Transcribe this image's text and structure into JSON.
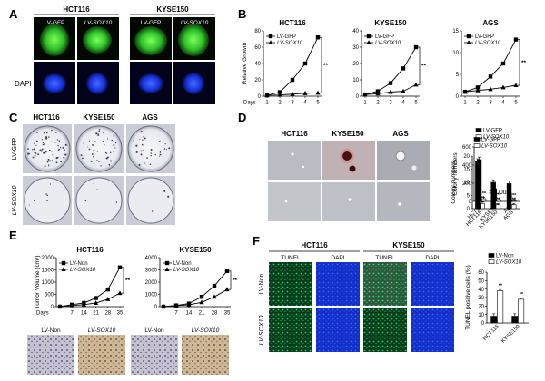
{
  "panels": {
    "A": {
      "letter": "A",
      "cells": [
        "HCT116",
        "KYSE150"
      ],
      "cols": [
        "LV-GFP",
        "LV-SOX10",
        "LV-GFP",
        "LV-SOX10"
      ],
      "row2": "DAPI"
    },
    "C": {
      "letter": "C",
      "cols": [
        "HCT116",
        "KYSE150",
        "AGS"
      ],
      "rows": [
        "LV-GFP",
        "LV-SOX10"
      ]
    },
    "D": {
      "letter": "D",
      "cols": [
        "HCT116",
        "KYSE150",
        "AGS"
      ],
      "note": ">100uM"
    },
    "E": {
      "letter": "E",
      "photo_labels": [
        "LV-Non",
        "LV-SOX10",
        "LV-Non",
        "LV-SOX10"
      ]
    },
    "F": {
      "letter": "F",
      "cells": [
        "HCT116",
        "KYSE150"
      ],
      "cols": [
        "TUNEL",
        "DAPI",
        "TUNEL",
        "DAPI"
      ],
      "rows": [
        "LV-Non",
        "LV-SOX10"
      ]
    }
  },
  "chart_data": [
    {
      "id": "B1",
      "type": "line",
      "title": "HCT116",
      "x": [
        1,
        2,
        3,
        4,
        5
      ],
      "xlabel": "Days",
      "ylabel": "Relative Growth",
      "ylim": [
        0,
        80
      ],
      "yticks": [
        0,
        20,
        40,
        60,
        80
      ],
      "legend": "top-left",
      "sig": "**",
      "series": [
        {
          "name": "LV-GFP",
          "values": [
            1,
            5,
            20,
            40,
            72
          ]
        },
        {
          "name": "LV-SOX10",
          "values": [
            1,
            1.5,
            2.5,
            3.5,
            4
          ]
        }
      ]
    },
    {
      "id": "B2",
      "type": "line",
      "title": "KYSE150",
      "x": [
        1,
        2,
        3,
        4,
        5
      ],
      "xlabel": "",
      "ylabel": "",
      "ylim": [
        0,
        40
      ],
      "yticks": [
        0,
        10,
        20,
        30,
        40
      ],
      "legend": "top-left",
      "sig": "**",
      "series": [
        {
          "name": "LV-GFP",
          "values": [
            1,
            3,
            8,
            17,
            30
          ]
        },
        {
          "name": "LV-SOX10",
          "values": [
            1,
            1.5,
            2.5,
            3,
            7
          ]
        }
      ]
    },
    {
      "id": "B3",
      "type": "line",
      "title": "AGS",
      "x": [
        1,
        2,
        3,
        4,
        5
      ],
      "xlabel": "",
      "ylabel": "",
      "ylim": [
        0,
        15
      ],
      "yticks": [
        0,
        5,
        10,
        15
      ],
      "legend": "top-left",
      "sig": "**",
      "series": [
        {
          "name": "LV-GFP",
          "values": [
            1,
            2,
            4.5,
            7.5,
            13
          ]
        },
        {
          "name": "LV-SOX10",
          "values": [
            1,
            1.3,
            1.6,
            2,
            2.5
          ]
        }
      ]
    },
    {
      "id": "C",
      "type": "bar",
      "categories": [
        "HCT116",
        "KYSE150",
        "AGS"
      ],
      "ylabel": "Colony numbers",
      "ylim": [
        0,
        600
      ],
      "yticks": [
        0,
        200,
        400,
        600
      ],
      "legend": "top-right",
      "sig": "**",
      "series": [
        {
          "name": "LV-GFP",
          "values": [
            460,
            140,
            90
          ]
        },
        {
          "name": "LV-SOX10",
          "values": [
            30,
            15,
            8
          ]
        }
      ]
    },
    {
      "id": "D",
      "type": "bar",
      "categories": [
        "HCT116",
        "KYSE150",
        "AGS"
      ],
      "ylabel": "Colony numbers",
      "ylim": [
        0,
        20
      ],
      "yticks": [
        0,
        5,
        10,
        15,
        20
      ],
      "legend": "top-right",
      "sig": "**",
      "series": [
        {
          "name": "LV-GFP",
          "values": [
            18,
            10,
            9.5
          ]
        },
        {
          "name": "LV-SOX10",
          "values": [
            2,
            1.5,
            1.5
          ]
        }
      ]
    },
    {
      "id": "E1",
      "type": "line",
      "title": "HCT116",
      "x": [
        0,
        7,
        14,
        21,
        28,
        35
      ],
      "xlabel": "Days",
      "ylabel": "Tumor Volume (cm³)",
      "ylim": [
        0,
        2000
      ],
      "yticks": [
        0,
        500,
        1000,
        1500,
        2000
      ],
      "legend": "top-left",
      "sig": "**",
      "series": [
        {
          "name": "LV-Non",
          "values": [
            0,
            80,
            150,
            350,
            700,
            1600
          ]
        },
        {
          "name": "LV-SOX10",
          "values": [
            0,
            50,
            80,
            150,
            300,
            550
          ]
        }
      ]
    },
    {
      "id": "E2",
      "type": "line",
      "title": "KYSE150",
      "x": [
        0,
        7,
        14,
        21,
        28,
        35
      ],
      "xlabel": "",
      "ylabel": "",
      "ylim": [
        0,
        4000
      ],
      "yticks": [
        0,
        1000,
        2000,
        3000,
        4000
      ],
      "legend": "top-left",
      "sig": "**",
      "series": [
        {
          "name": "LV-Non",
          "values": [
            0,
            100,
            250,
            800,
            1700,
            2900
          ]
        },
        {
          "name": "LV-SOX10",
          "values": [
            0,
            80,
            150,
            350,
            800,
            1400
          ]
        }
      ]
    },
    {
      "id": "F",
      "type": "bar",
      "categories": [
        "HCT116",
        "KYSE150"
      ],
      "ylabel": "TUNEL positive cells (%)",
      "ylim": [
        0,
        60
      ],
      "yticks": [
        0,
        10,
        20,
        30,
        40,
        50,
        60
      ],
      "legend": "top-right",
      "sig": "**",
      "series": [
        {
          "name": "LV-Non",
          "values": [
            8,
            8
          ]
        },
        {
          "name": "LV-SOX10",
          "values": [
            38,
            28
          ]
        }
      ]
    }
  ]
}
